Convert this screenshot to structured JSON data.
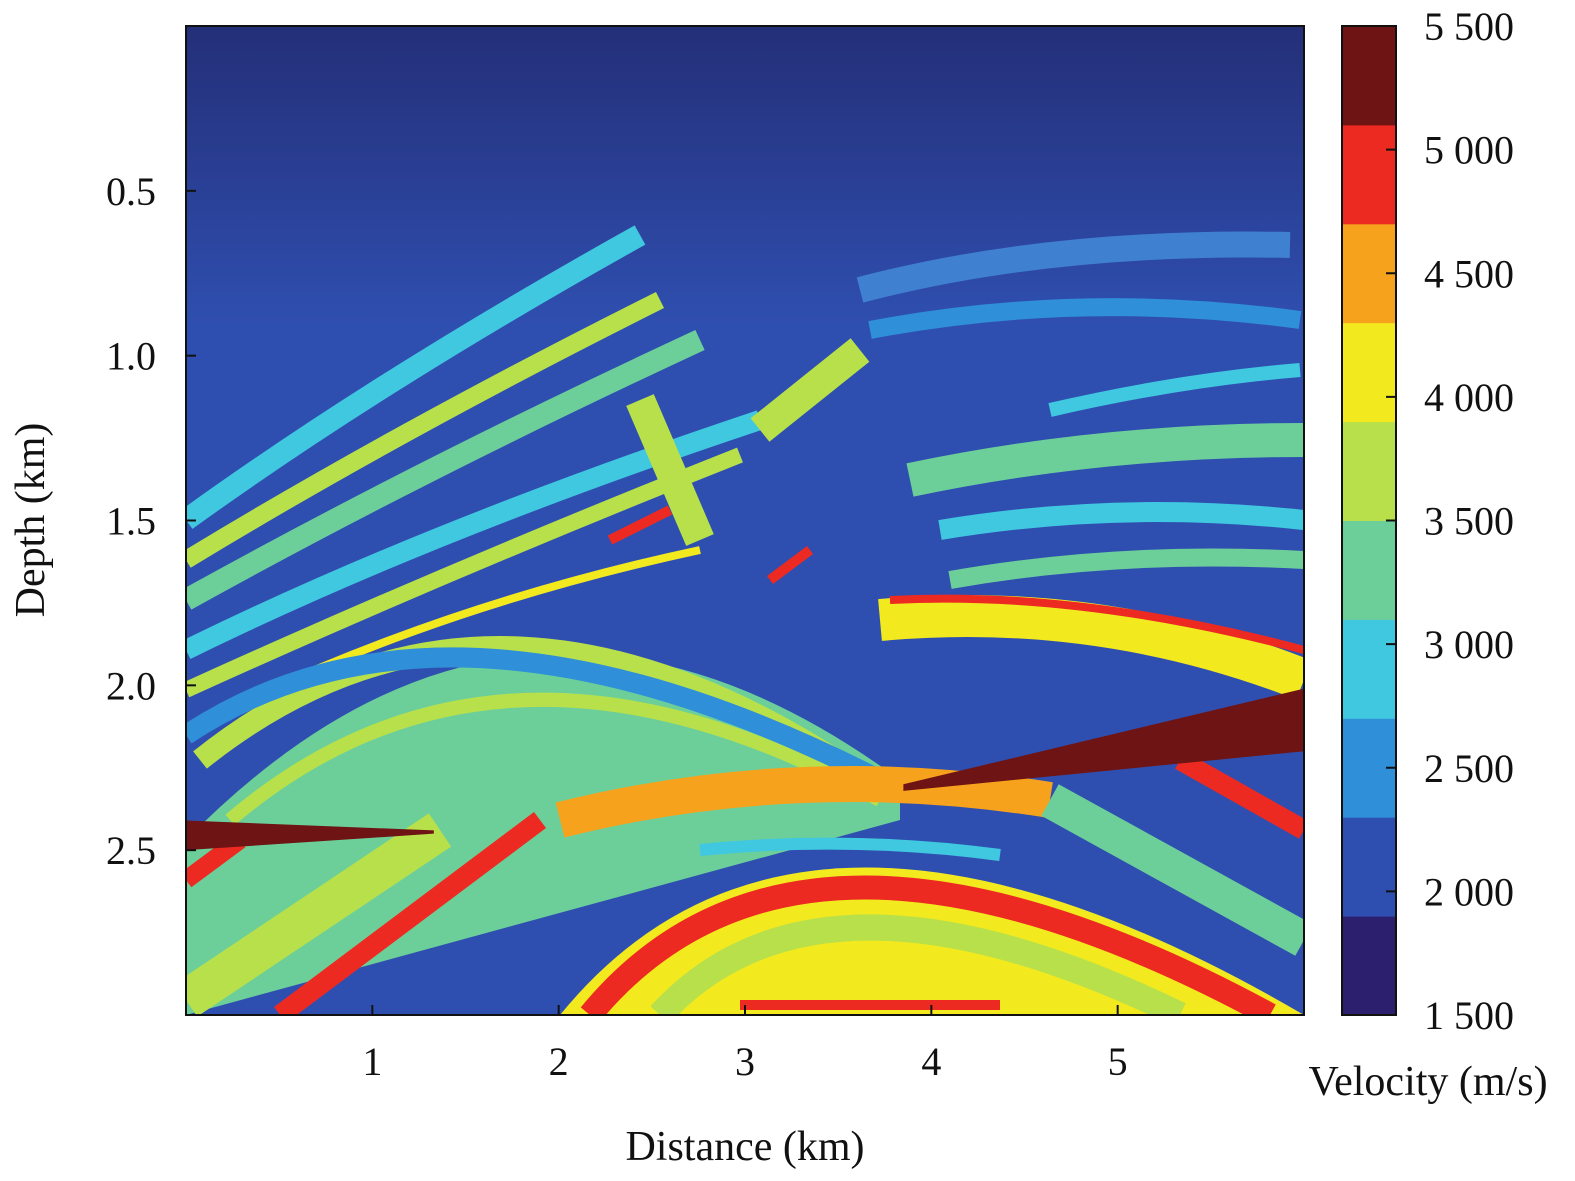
{
  "chart_data": {
    "type": "heatmap",
    "title": "",
    "xlabel": "Distance (km)",
    "ylabel": "Depth (km)",
    "colorbar_label": "Velocity (m/s)",
    "xlim": [
      0,
      6
    ],
    "ylim": [
      0,
      3
    ],
    "y_reversed": true,
    "x_ticks": [
      "1",
      "2",
      "3",
      "4",
      "5"
    ],
    "x_tick_values": [
      1,
      2,
      3,
      4,
      5
    ],
    "y_ticks": [
      "0.5",
      "1.0",
      "1.5",
      "2.0",
      "2.5"
    ],
    "y_tick_values": [
      0.5,
      1.0,
      1.5,
      2.0,
      2.5
    ],
    "colorbar_ticks": [
      "5 500",
      "5 000",
      "4  500",
      "4 000",
      "3 500",
      "3 000",
      "2 500",
      "2 000",
      "1 500"
    ],
    "colorbar_tick_values": [
      5500,
      5000,
      4500,
      4000,
      3500,
      3000,
      2500,
      2000,
      1500
    ],
    "value_range": [
      1500,
      5500
    ],
    "colormap": "jet",
    "colormap_stops": [
      "#2b1f6e",
      "#2f4fb0",
      "#2f8fd8",
      "#40c8e0",
      "#6ccf9a",
      "#b8e04a",
      "#f2ea1e",
      "#f7a21c",
      "#ec2a22",
      "#6e1414"
    ],
    "features": [
      {
        "label": "salt-layer-right",
        "velocity": 5500,
        "x": [
          3.85,
          6.0
        ],
        "depth_top": [
          2.3,
          2.01
        ],
        "depth_bottom": [
          2.32,
          2.2
        ]
      },
      {
        "label": "salt-layer-left",
        "velocity": 5500,
        "x": [
          0.0,
          1.33
        ],
        "depth_top": [
          2.41,
          2.44
        ],
        "depth_bottom": [
          2.5,
          2.45
        ]
      }
    ]
  }
}
